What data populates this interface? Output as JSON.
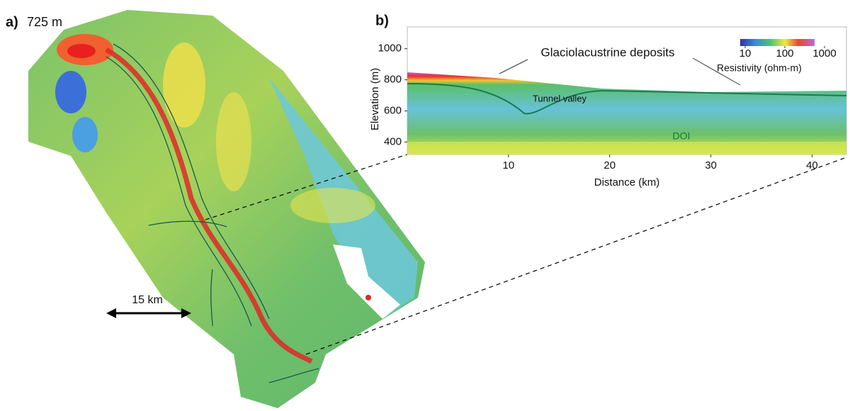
{
  "panel_a": {
    "label": "a)",
    "depth": "725 m",
    "scale_bar": "15 km"
  },
  "panel_b": {
    "label": "b)",
    "y_axis": {
      "title": "Elevation (m)",
      "lim": [
        320,
        1140
      ],
      "ticks": [
        400,
        600,
        800,
        1000
      ]
    },
    "x_axis": {
      "title": "Distance (km)",
      "lim": [
        0,
        43.4
      ],
      "ticks": [
        10,
        20,
        30,
        40
      ]
    },
    "annotations": [
      "Glaciolacustrine deposits",
      "Tunnel valley",
      "DOI"
    ],
    "colorbar": {
      "title": "Resistivity (ohm-m)",
      "ticks": [
        10,
        100,
        1000
      ]
    }
  }
}
